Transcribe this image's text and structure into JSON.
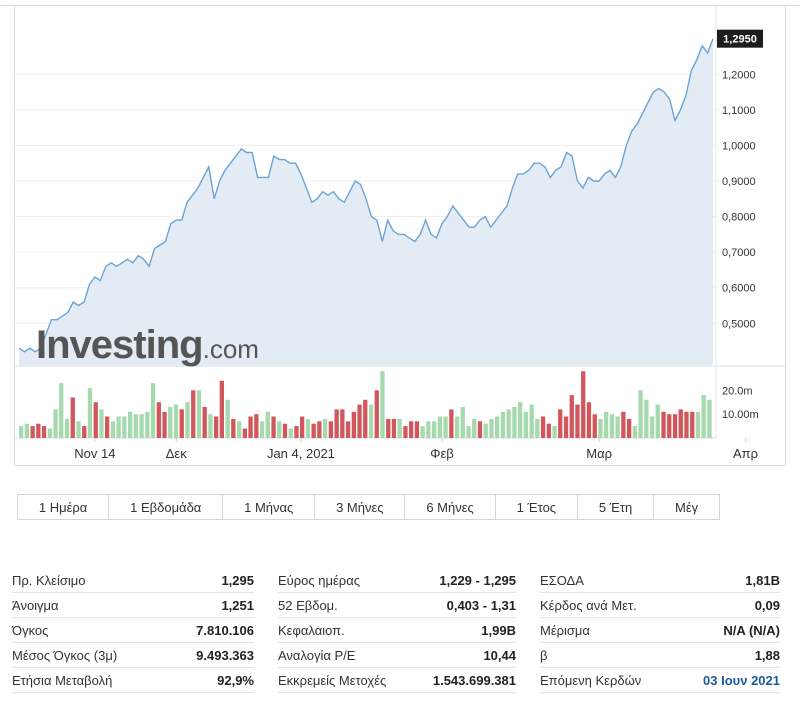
{
  "chart_data": {
    "type": "line",
    "title": "",
    "watermark": "Investing.com",
    "current_price_label": "1,2950",
    "y_ticks": [
      "1,2000",
      "1,1000",
      "1,0000",
      "0,9000",
      "0,8000",
      "0,7000",
      "0,6000",
      "0,5000"
    ],
    "ylim": [
      0.38,
      1.33
    ],
    "price_series": [
      0.43,
      0.42,
      0.43,
      0.42,
      0.43,
      0.47,
      0.51,
      0.51,
      0.52,
      0.53,
      0.56,
      0.55,
      0.56,
      0.61,
      0.63,
      0.62,
      0.66,
      0.67,
      0.66,
      0.67,
      0.68,
      0.67,
      0.69,
      0.68,
      0.66,
      0.71,
      0.72,
      0.73,
      0.78,
      0.79,
      0.79,
      0.84,
      0.86,
      0.88,
      0.91,
      0.94,
      0.85,
      0.9,
      0.93,
      0.95,
      0.97,
      0.99,
      0.98,
      0.98,
      0.91,
      0.91,
      0.91,
      0.97,
      0.96,
      0.96,
      0.95,
      0.95,
      0.92,
      0.88,
      0.84,
      0.85,
      0.87,
      0.86,
      0.87,
      0.85,
      0.84,
      0.87,
      0.9,
      0.89,
      0.85,
      0.8,
      0.79,
      0.73,
      0.79,
      0.76,
      0.75,
      0.75,
      0.74,
      0.73,
      0.75,
      0.79,
      0.75,
      0.74,
      0.78,
      0.8,
      0.83,
      0.81,
      0.79,
      0.77,
      0.77,
      0.79,
      0.8,
      0.77,
      0.79,
      0.81,
      0.83,
      0.88,
      0.92,
      0.92,
      0.93,
      0.95,
      0.95,
      0.94,
      0.91,
      0.93,
      0.94,
      0.98,
      0.97,
      0.9,
      0.88,
      0.91,
      0.9,
      0.9,
      0.92,
      0.93,
      0.91,
      0.94,
      1.0,
      1.04,
      1.06,
      1.09,
      1.12,
      1.15,
      1.16,
      1.15,
      1.13,
      1.07,
      1.1,
      1.14,
      1.21,
      1.24,
      1.28,
      1.26,
      1.3
    ],
    "volume_ticks": [
      "20.0m",
      "10.00m"
    ],
    "volume_max": 26,
    "volume_bars": [
      {
        "v": 5,
        "d": "up"
      },
      {
        "v": 6,
        "d": "up"
      },
      {
        "v": 5,
        "d": "down"
      },
      {
        "v": 6,
        "d": "down"
      },
      {
        "v": 5,
        "d": "down"
      },
      {
        "v": 4,
        "d": "up"
      },
      {
        "v": 12,
        "d": "up"
      },
      {
        "v": 23,
        "d": "up"
      },
      {
        "v": 8,
        "d": "up"
      },
      {
        "v": 17,
        "d": "down"
      },
      {
        "v": 7,
        "d": "up"
      },
      {
        "v": 5,
        "d": "down"
      },
      {
        "v": 21,
        "d": "up"
      },
      {
        "v": 15,
        "d": "down"
      },
      {
        "v": 12,
        "d": "up"
      },
      {
        "v": 9,
        "d": "down"
      },
      {
        "v": 7,
        "d": "up"
      },
      {
        "v": 9,
        "d": "up"
      },
      {
        "v": 9,
        "d": "up"
      },
      {
        "v": 11,
        "d": "up"
      },
      {
        "v": 10,
        "d": "up"
      },
      {
        "v": 10,
        "d": "up"
      },
      {
        "v": 11,
        "d": "up"
      },
      {
        "v": 23,
        "d": "up"
      },
      {
        "v": 15,
        "d": "down"
      },
      {
        "v": 11,
        "d": "down"
      },
      {
        "v": 13,
        "d": "up"
      },
      {
        "v": 14,
        "d": "up"
      },
      {
        "v": 12,
        "d": "down"
      },
      {
        "v": 15,
        "d": "up"
      },
      {
        "v": 20,
        "d": "down"
      },
      {
        "v": 20,
        "d": "up"
      },
      {
        "v": 13,
        "d": "down"
      },
      {
        "v": 10,
        "d": "up"
      },
      {
        "v": 9,
        "d": "down"
      },
      {
        "v": 24,
        "d": "down"
      },
      {
        "v": 16,
        "d": "up"
      },
      {
        "v": 8,
        "d": "down"
      },
      {
        "v": 7,
        "d": "up"
      },
      {
        "v": 4,
        "d": "down"
      },
      {
        "v": 9,
        "d": "down"
      },
      {
        "v": 10,
        "d": "down"
      },
      {
        "v": 7,
        "d": "up"
      },
      {
        "v": 11,
        "d": "up"
      },
      {
        "v": 9,
        "d": "down"
      },
      {
        "v": 7,
        "d": "up"
      },
      {
        "v": 6,
        "d": "down"
      },
      {
        "v": 4,
        "d": "up"
      },
      {
        "v": 5,
        "d": "down"
      },
      {
        "v": 9,
        "d": "down"
      },
      {
        "v": 8,
        "d": "up"
      },
      {
        "v": 6,
        "d": "down"
      },
      {
        "v": 7,
        "d": "down"
      },
      {
        "v": 8,
        "d": "up"
      },
      {
        "v": 7,
        "d": "down"
      },
      {
        "v": 12,
        "d": "down"
      },
      {
        "v": 12,
        "d": "down"
      },
      {
        "v": 7,
        "d": "down"
      },
      {
        "v": 11,
        "d": "down"
      },
      {
        "v": 14,
        "d": "down"
      },
      {
        "v": 16,
        "d": "down"
      },
      {
        "v": 14,
        "d": "up"
      },
      {
        "v": 20,
        "d": "down"
      },
      {
        "v": 28,
        "d": "up"
      },
      {
        "v": 8,
        "d": "down"
      },
      {
        "v": 8,
        "d": "down"
      },
      {
        "v": 8,
        "d": "up"
      },
      {
        "v": 5,
        "d": "down"
      },
      {
        "v": 7,
        "d": "down"
      },
      {
        "v": 7,
        "d": "down"
      },
      {
        "v": 5,
        "d": "up"
      },
      {
        "v": 7,
        "d": "up"
      },
      {
        "v": 7,
        "d": "up"
      },
      {
        "v": 9,
        "d": "up"
      },
      {
        "v": 9,
        "d": "up"
      },
      {
        "v": 12,
        "d": "down"
      },
      {
        "v": 9,
        "d": "up"
      },
      {
        "v": 13,
        "d": "up"
      },
      {
        "v": 5,
        "d": "up"
      },
      {
        "v": 8,
        "d": "up"
      },
      {
        "v": 7,
        "d": "down"
      },
      {
        "v": 6,
        "d": "up"
      },
      {
        "v": 8,
        "d": "up"
      },
      {
        "v": 9,
        "d": "up"
      },
      {
        "v": 11,
        "d": "up"
      },
      {
        "v": 12,
        "d": "up"
      },
      {
        "v": 13,
        "d": "up"
      },
      {
        "v": 15,
        "d": "up"
      },
      {
        "v": 11,
        "d": "up"
      },
      {
        "v": 14,
        "d": "up"
      },
      {
        "v": 8,
        "d": "up"
      },
      {
        "v": 9,
        "d": "down"
      },
      {
        "v": 6,
        "d": "down"
      },
      {
        "v": 5,
        "d": "up"
      },
      {
        "v": 12,
        "d": "down"
      },
      {
        "v": 9,
        "d": "down"
      },
      {
        "v": 18,
        "d": "down"
      },
      {
        "v": 14,
        "d": "down"
      },
      {
        "v": 28,
        "d": "down"
      },
      {
        "v": 15,
        "d": "down"
      },
      {
        "v": 10,
        "d": "down"
      },
      {
        "v": 8,
        "d": "up"
      },
      {
        "v": 11,
        "d": "up"
      },
      {
        "v": 10,
        "d": "up"
      },
      {
        "v": 9,
        "d": "up"
      },
      {
        "v": 11,
        "d": "down"
      },
      {
        "v": 8,
        "d": "down"
      },
      {
        "v": 5,
        "d": "up"
      },
      {
        "v": 20,
        "d": "up"
      },
      {
        "v": 16,
        "d": "up"
      },
      {
        "v": 9,
        "d": "up"
      },
      {
        "v": 14,
        "d": "up"
      },
      {
        "v": 11,
        "d": "down"
      },
      {
        "v": 10,
        "d": "down"
      },
      {
        "v": 10,
        "d": "down"
      },
      {
        "v": 12,
        "d": "down"
      },
      {
        "v": 11,
        "d": "down"
      },
      {
        "v": 11,
        "d": "down"
      },
      {
        "v": 11,
        "d": "up"
      },
      {
        "v": 18,
        "d": "up"
      },
      {
        "v": 16,
        "d": "up"
      }
    ],
    "x_ticks": [
      "Nov 14",
      "Δεκ",
      "Jan 4, 2021",
      "Φεβ",
      "Μαρ",
      "Απρ"
    ],
    "x_tick_index": [
      14,
      29,
      52,
      78,
      107,
      134
    ],
    "colors": {
      "line": "#6ca3d6",
      "area": "#e3ecf5",
      "up": "#a6d9ae",
      "down": "#d2575c",
      "grid": "#eeeeee",
      "label_bg": "#1d1d1d"
    }
  },
  "range_buttons": [
    "1 Ημέρα",
    "1 Εβδομάδα",
    "1 Μήνας",
    "3 Μήνες",
    "6 Μήνες",
    "1 Έτος",
    "5 Έτη",
    "Μέγ"
  ],
  "stats": {
    "col1": [
      {
        "label": "Πρ. Κλείσιμο",
        "value": "1,295"
      },
      {
        "label": "Άνοιγμα",
        "value": "1,251"
      },
      {
        "label": "Όγκος",
        "value": "7.810.106"
      },
      {
        "label": "Μέσος Όγκος (3μ)",
        "value": "9.493.363"
      },
      {
        "label": "Ετήσια Μεταβολή",
        "value": "92,9%"
      }
    ],
    "col2": [
      {
        "label": "Εύρος ημέρας",
        "value": "1,229 - 1,295"
      },
      {
        "label": "52 Εβδομ.",
        "value": "0,403 - 1,31"
      },
      {
        "label": "Κεφαλαιοπ.",
        "value": "1,99B"
      },
      {
        "label": "Αναλογία P/E",
        "value": "10,44"
      },
      {
        "label": "Εκκρεμείς Μετοχές",
        "value": "1.543.699.381"
      }
    ],
    "col3": [
      {
        "label": "ΕΣΟΔΑ",
        "value": "1,81B"
      },
      {
        "label": "Κέρδος ανά Μετ.",
        "value": "0,09"
      },
      {
        "label": "Μέρισμα",
        "value": "N/A (N/A)"
      },
      {
        "label": "β",
        "value": "1,88"
      },
      {
        "label": "Επόμενη Κερδών",
        "value": "03 Ιουν 2021"
      }
    ]
  }
}
